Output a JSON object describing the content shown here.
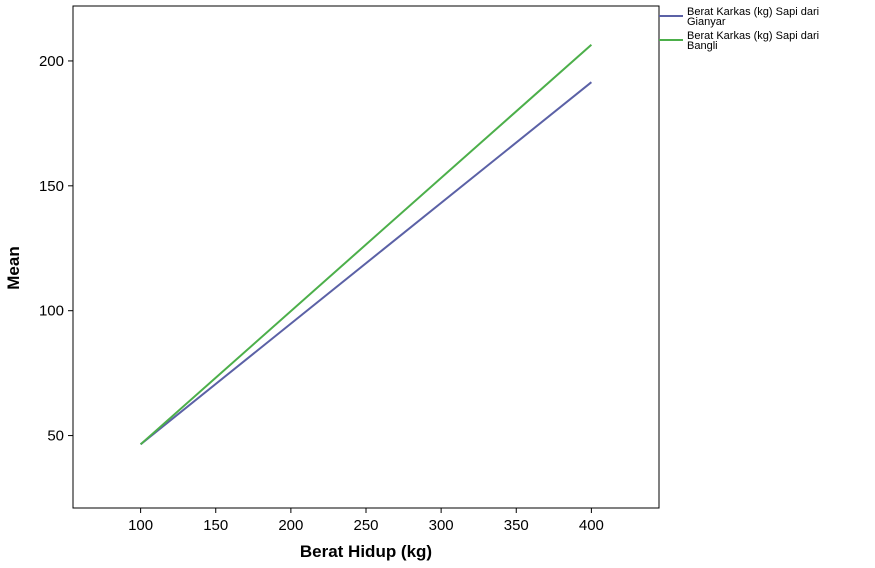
{
  "chart_data": {
    "type": "line",
    "xlabel": "Berat Hidup (kg)",
    "ylabel": "Mean",
    "xlim": [
      55,
      445
    ],
    "ylim": [
      21,
      222
    ],
    "xticks": [
      100,
      150,
      200,
      250,
      300,
      350,
      400
    ],
    "yticks": [
      50,
      100,
      150,
      200
    ],
    "grid": false,
    "legend_position": "right",
    "series": [
      {
        "name": [
          "Berat Karkas (kg) Sapi dari",
          "Gianyar"
        ],
        "color": "#5b61a6",
        "x": [
          100,
          400
        ],
        "y": [
          46.5,
          191.5
        ]
      },
      {
        "name": [
          "Berat Karkas (kg) Sapi dari",
          "Bangli"
        ],
        "color": "#4caf4a",
        "x": [
          100,
          400
        ],
        "y": [
          46.5,
          206.5
        ]
      }
    ]
  }
}
